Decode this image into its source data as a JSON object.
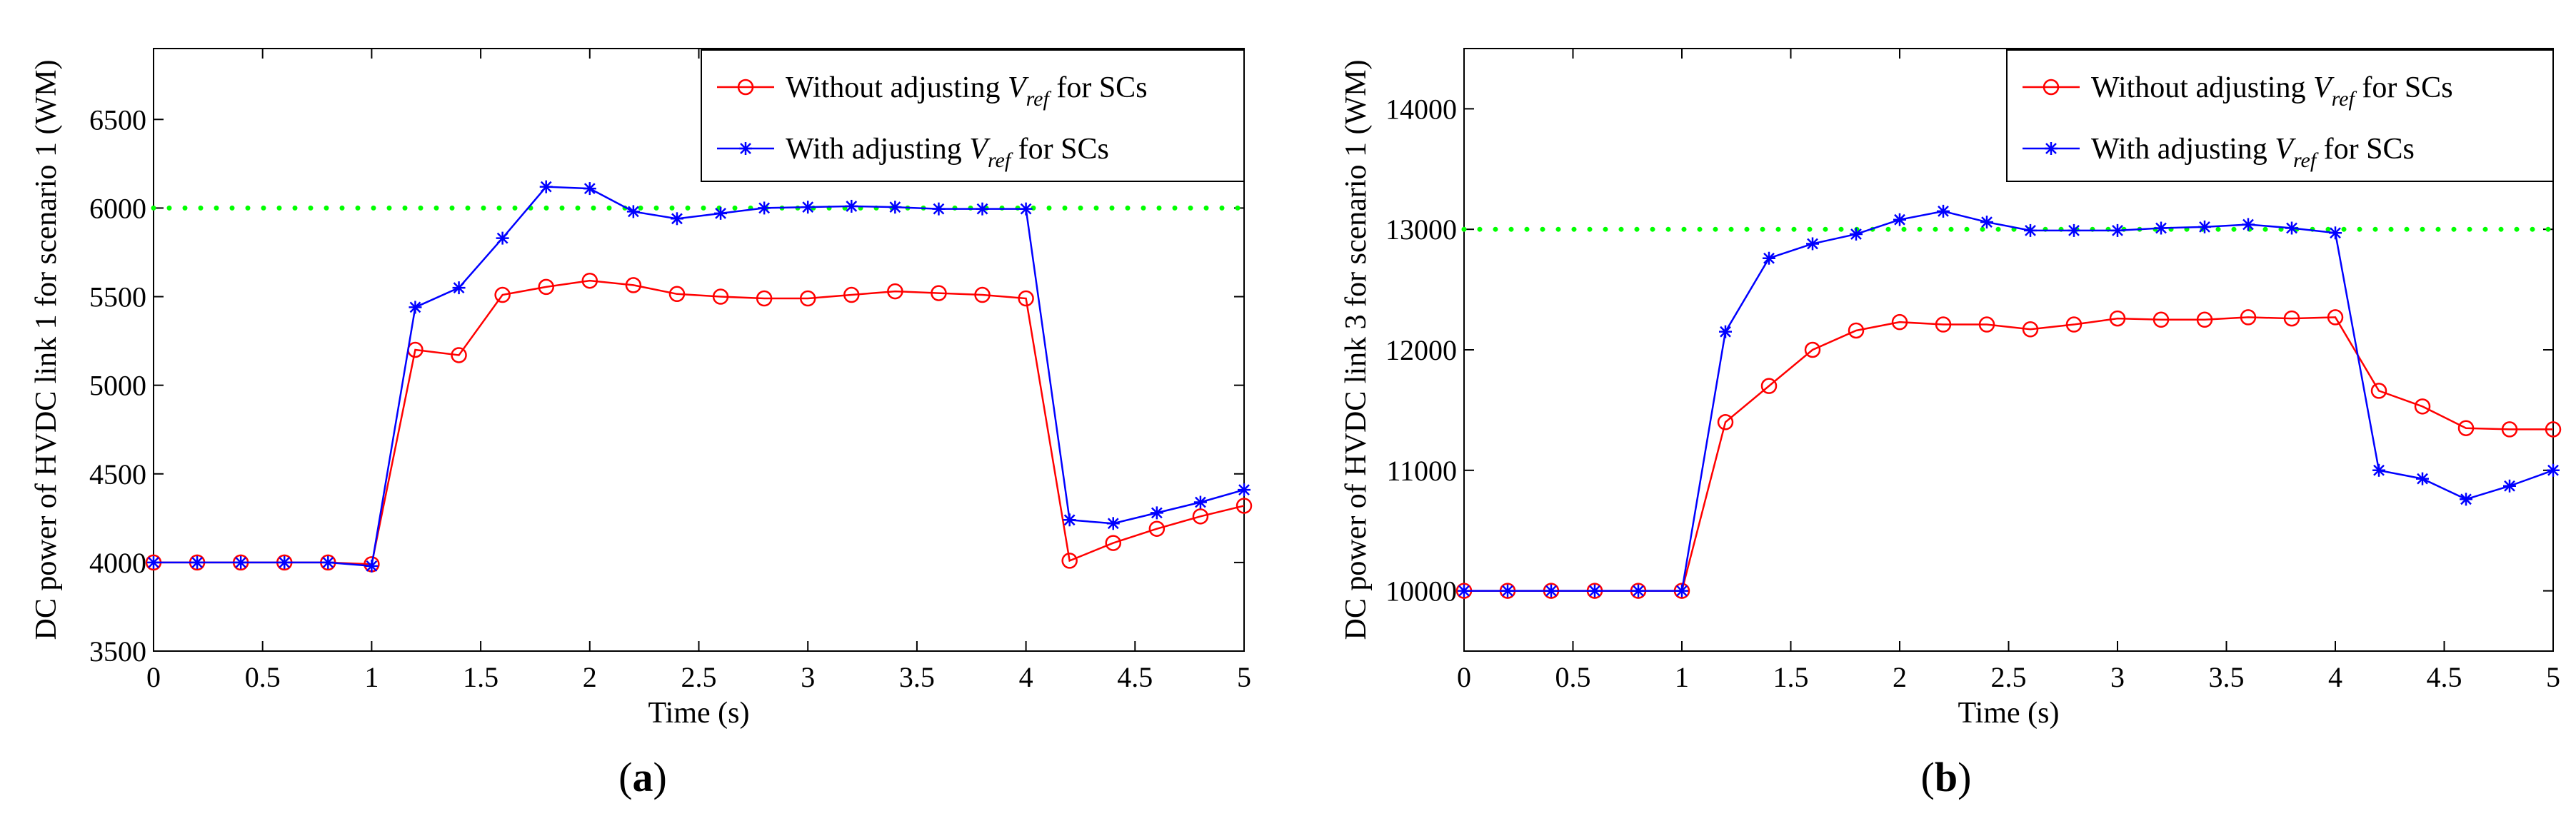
{
  "figure": {
    "charts": [
      {
        "panel_label": "a",
        "ylabel": "DC power of HVDC link 1 for scenario 1 (WM)",
        "xlabel": "Time (s)"
      },
      {
        "panel_label": "b",
        "ylabel": "DC power of HVDC link 3 for scenario 1 (WM)",
        "xlabel": "Time (s)"
      }
    ]
  },
  "colors": {
    "series_without": "#ff0000",
    "series_with": "#0000ff",
    "reference": "#00ff00"
  },
  "chart_data": [
    {
      "type": "line",
      "panel": "a",
      "xlabel": "Time (s)",
      "ylabel": "DC power of HVDC link 1 for scenario 1 (WM)",
      "xlim": [
        0,
        5
      ],
      "ylim": [
        3500,
        6900
      ],
      "xticks": [
        0,
        0.5,
        1,
        1.5,
        2,
        2.5,
        3,
        3.5,
        4,
        4.5,
        5
      ],
      "xtick_labels": [
        "0",
        "0.5",
        "1",
        "1.5",
        "2",
        "2.5",
        "3",
        "3.5",
        "4",
        "4.5",
        "5"
      ],
      "yticks": [
        3500,
        4000,
        4500,
        5000,
        5500,
        6000,
        6500
      ],
      "ytick_labels": [
        "3500",
        "4000",
        "4500",
        "5000",
        "5500",
        "6000",
        "6500"
      ],
      "legend_position": "top-right",
      "reference_line": {
        "y": 6000,
        "style": "dotted"
      },
      "x": [
        0,
        0.2,
        0.4,
        0.6,
        0.8,
        1.0,
        1.2,
        1.4,
        1.6,
        1.8,
        2.0,
        2.2,
        2.4,
        2.6,
        2.8,
        3.0,
        3.2,
        3.4,
        3.6,
        3.8,
        4.0,
        4.2,
        4.4,
        4.6,
        4.8,
        5.0
      ],
      "series": [
        {
          "name": "Without adjusting V_ref for SCs",
          "legend_main": "Without adjusting ",
          "legend_var": "V",
          "legend_sub": "ref",
          "legend_tail": " for SCs",
          "marker": "circle",
          "values": [
            4000,
            4000,
            4000,
            4000,
            4000,
            3990,
            5200,
            5170,
            5510,
            5555,
            5590,
            5565,
            5515,
            5500,
            5490,
            5490,
            5510,
            5530,
            5520,
            5510,
            5490,
            4010,
            4110,
            4190,
            4260,
            4320
          ]
        },
        {
          "name": "With adjusting V_ref for SCs",
          "legend_main": "With adjusting ",
          "legend_var": "V",
          "legend_sub": "ref",
          "legend_tail": " for SCs",
          "marker": "star",
          "values": [
            4000,
            4000,
            4000,
            4000,
            4000,
            3980,
            5440,
            5550,
            5830,
            6120,
            6110,
            5980,
            5940,
            5970,
            6000,
            6005,
            6010,
            6005,
            5995,
            5995,
            5995,
            4240,
            4220,
            4280,
            4340,
            4410
          ]
        }
      ]
    },
    {
      "type": "line",
      "panel": "b",
      "xlabel": "Time (s)",
      "ylabel": "DC power of HVDC link 3 for scenario 1 (WM)",
      "xlim": [
        0,
        5
      ],
      "ylim": [
        9500,
        14500
      ],
      "xticks": [
        0,
        0.5,
        1,
        1.5,
        2,
        2.5,
        3,
        3.5,
        4,
        4.5,
        5
      ],
      "xtick_labels": [
        "0",
        "0.5",
        "1",
        "1.5",
        "2",
        "2.5",
        "3",
        "3.5",
        "4",
        "4.5",
        "5"
      ],
      "yticks": [
        10000,
        11000,
        12000,
        13000,
        14000
      ],
      "ytick_labels": [
        "10000",
        "11000",
        "12000",
        "13000",
        "14000"
      ],
      "legend_position": "top-right",
      "reference_line": {
        "y": 13000,
        "style": "dotted"
      },
      "x": [
        0,
        0.2,
        0.4,
        0.6,
        0.8,
        1.0,
        1.2,
        1.4,
        1.6,
        1.8,
        2.0,
        2.2,
        2.4,
        2.6,
        2.8,
        3.0,
        3.2,
        3.4,
        3.6,
        3.8,
        4.0,
        4.2,
        4.4,
        4.6,
        4.8,
        5.0
      ],
      "series": [
        {
          "name": "Without adjusting V_ref for SCs",
          "legend_main": "Without adjusting ",
          "legend_var": "V",
          "legend_sub": "ref",
          "legend_tail": " for SCs",
          "marker": "circle",
          "values": [
            10000,
            10000,
            10000,
            10000,
            10000,
            10000,
            11400,
            11700,
            12000,
            12160,
            12230,
            12210,
            12210,
            12170,
            12210,
            12260,
            12250,
            12250,
            12270,
            12260,
            12270,
            11660,
            11530,
            11350,
            11340,
            11340
          ]
        },
        {
          "name": "With adjusting V_ref for SCs",
          "legend_main": "With adjusting ",
          "legend_var": "V",
          "legend_sub": "ref",
          "legend_tail": " for SCs",
          "marker": "star",
          "values": [
            10000,
            10000,
            10000,
            10000,
            10000,
            10000,
            12150,
            12760,
            12880,
            12960,
            13080,
            13150,
            13060,
            12990,
            12990,
            12990,
            13010,
            13020,
            13040,
            13010,
            12970,
            11000,
            10930,
            10760,
            10870,
            11000
          ]
        }
      ]
    }
  ]
}
